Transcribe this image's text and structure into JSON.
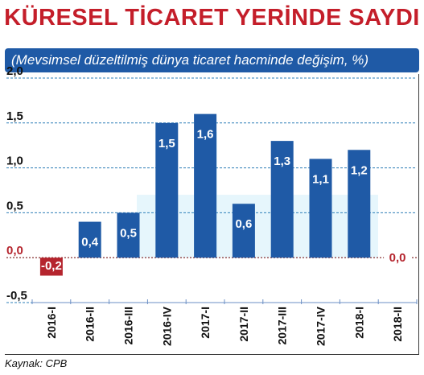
{
  "title": "KÜRESEL TİCARET YERİNDE SAYDI",
  "subtitle": "(Mevsimsel düzeltilmiş dünya ticaret hacminde değişim, %)",
  "source": "Kaynak: CPB",
  "colors": {
    "title": "#c41e2a",
    "subtitle_bg": "#1f5aa6",
    "bar_positive": "#1f5aa6",
    "bar_negative": "#b5252e",
    "zero_line": "#7a1a1a",
    "grid": "#2e7fb8",
    "band": "#d6f0fa"
  },
  "chart_data": {
    "type": "bar",
    "title": "KÜRESEL TİCARET YERİNDE SAYDI",
    "subtitle": "(Mevsimsel düzeltilmiş dünya ticaret hacminde değişim, %)",
    "categories": [
      "2016-I",
      "2016-II",
      "2016-III",
      "2016-IV",
      "2017-I",
      "2017-II",
      "2017-III",
      "2017-IV",
      "2018-I",
      "2018-II"
    ],
    "values": [
      -0.2,
      0.4,
      0.5,
      1.5,
      1.6,
      0.6,
      1.3,
      1.1,
      1.2,
      0.0
    ],
    "value_labels": [
      "-0,2",
      "0,4",
      "0,5",
      "1,5",
      "1,6",
      "0,6",
      "1,3",
      "1,1",
      "1,2",
      "0,0"
    ],
    "ylim": [
      -0.5,
      2.0
    ],
    "yticks": [
      -0.5,
      0.0,
      0.5,
      1.0,
      1.5,
      2.0
    ],
    "ytick_labels": [
      "-0,5",
      "0,0",
      "0,5",
      "1,0",
      "1,5",
      "2,0"
    ],
    "grid": true,
    "legend": "none"
  }
}
